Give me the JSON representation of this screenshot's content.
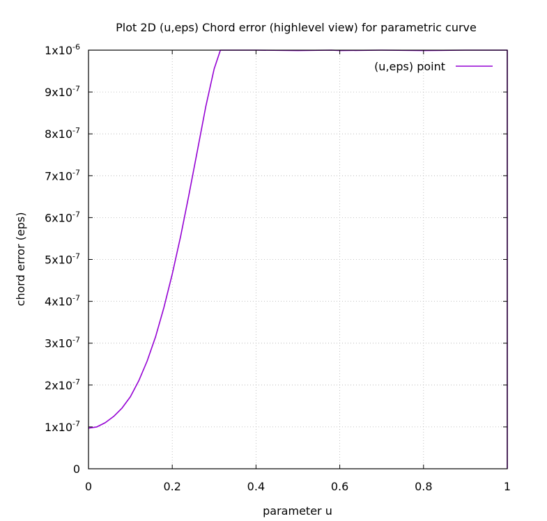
{
  "chart_data": {
    "type": "line",
    "title": "Plot 2D (u,eps) Chord error (highlevel view) for parametric curve",
    "xlabel": "parameter u",
    "ylabel": "chord error (eps)",
    "xlim": [
      0,
      1
    ],
    "ylim": [
      0,
      1e-06
    ],
    "grid": true,
    "legend_position": "top-right",
    "x_ticks": [
      {
        "value": 0,
        "label": "0"
      },
      {
        "value": 0.2,
        "label": "0.2"
      },
      {
        "value": 0.4,
        "label": "0.4"
      },
      {
        "value": 0.6,
        "label": "0.6"
      },
      {
        "value": 0.8,
        "label": "0.8"
      },
      {
        "value": 1,
        "label": "1"
      }
    ],
    "y_ticks": [
      {
        "value": 0,
        "mantissa": "0",
        "exp": ""
      },
      {
        "value": 1e-07,
        "mantissa": "1x10",
        "exp": "-7"
      },
      {
        "value": 2e-07,
        "mantissa": "2x10",
        "exp": "-7"
      },
      {
        "value": 3e-07,
        "mantissa": "3x10",
        "exp": "-7"
      },
      {
        "value": 4e-07,
        "mantissa": "4x10",
        "exp": "-7"
      },
      {
        "value": 5e-07,
        "mantissa": "5x10",
        "exp": "-7"
      },
      {
        "value": 6e-07,
        "mantissa": "6x10",
        "exp": "-7"
      },
      {
        "value": 7e-07,
        "mantissa": "7x10",
        "exp": "-7"
      },
      {
        "value": 8e-07,
        "mantissa": "8x10",
        "exp": "-7"
      },
      {
        "value": 9e-07,
        "mantissa": "9x10",
        "exp": "-7"
      },
      {
        "value": 1e-06,
        "mantissa": "1x10",
        "exp": "-6"
      }
    ],
    "series": [
      {
        "name": "(u,eps) point",
        "color": "#9400d3",
        "x": [
          0,
          0.02,
          0.04,
          0.06,
          0.08,
          0.1,
          0.12,
          0.14,
          0.16,
          0.18,
          0.2,
          0.22,
          0.24,
          0.26,
          0.28,
          0.3,
          0.315,
          0.4,
          0.5,
          0.58,
          0.6,
          0.7,
          0.8,
          0.9,
          1.0,
          1.0
        ],
        "y": [
          9.7e-08,
          1e-07,
          1.1e-07,
          1.25e-07,
          1.45e-07,
          1.72e-07,
          2.1e-07,
          2.57e-07,
          3.15e-07,
          3.85e-07,
          4.65e-07,
          5.55e-07,
          6.55e-07,
          7.6e-07,
          8.65e-07,
          9.55e-07,
          1e-06,
          1e-06,
          9.99e-07,
          1e-06,
          9.99e-07,
          1e-06,
          9.99e-07,
          1e-06,
          1e-06,
          0
        ]
      }
    ]
  }
}
